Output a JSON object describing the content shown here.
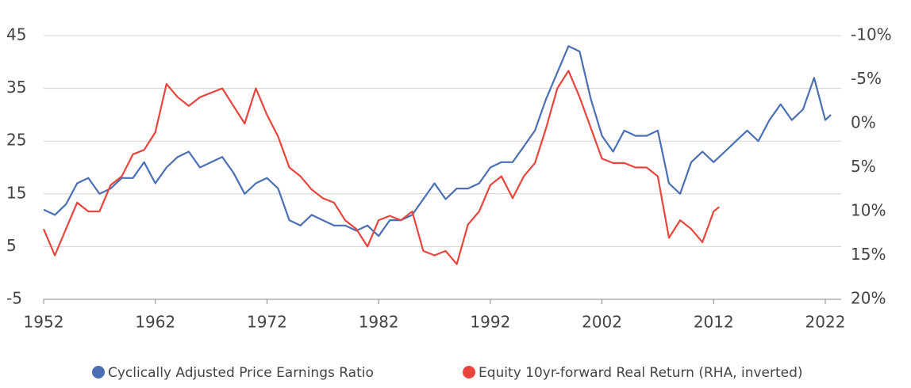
{
  "chart_data": {
    "type": "line",
    "xlim": [
      1952,
      2022
    ],
    "xticks": [
      1952,
      1962,
      1972,
      1982,
      1992,
      2002,
      2012,
      2022
    ],
    "ylim": [
      -5,
      45
    ],
    "yticks": [
      -5,
      5,
      15,
      25,
      35,
      45
    ],
    "y2lim": [
      20,
      -10
    ],
    "y2ticks": [
      {
        "value": 20,
        "label": "20%"
      },
      {
        "value": 15,
        "label": "15%"
      },
      {
        "value": 10,
        "label": "10%"
      },
      {
        "value": 5,
        "label": "5%"
      },
      {
        "value": 0,
        "label": "0%"
      },
      {
        "value": -5,
        "label": "-5%"
      },
      {
        "value": -10,
        "label": "-10%"
      }
    ],
    "grid": true,
    "legend": "bottom",
    "series": [
      {
        "name": "Cyclically Adjusted Price Earnings Ratio",
        "color": "#4a6fb5",
        "x": [
          1952,
          1953,
          1954,
          1955,
          1956,
          1957,
          1958,
          1959,
          1960,
          1961,
          1962,
          1963,
          1964,
          1965,
          1966,
          1967,
          1968,
          1969,
          1970,
          1971,
          1972,
          1973,
          1974,
          1975,
          1976,
          1977,
          1978,
          1979,
          1980,
          1981,
          1982,
          1983,
          1984,
          1985,
          1986,
          1987,
          1988,
          1989,
          1990,
          1991,
          1992,
          1993,
          1994,
          1995,
          1996,
          1997,
          1998,
          1999,
          2000,
          2001,
          2002,
          2003,
          2004,
          2005,
          2006,
          2007,
          2008,
          2009,
          2010,
          2011,
          2012,
          2013,
          2014,
          2015,
          2016,
          2017,
          2018,
          2019,
          2020,
          2021,
          2022,
          2022.5
        ],
        "values": [
          12,
          11,
          13,
          17,
          18,
          15,
          16,
          18,
          18,
          21,
          17,
          20,
          22,
          23,
          20,
          21,
          22,
          19,
          15,
          17,
          18,
          16,
          10,
          9,
          11,
          10,
          9,
          9,
          8,
          9,
          7,
          10,
          10,
          11,
          14,
          17,
          14,
          16,
          16,
          17,
          20,
          21,
          21,
          24,
          27,
          33,
          38,
          43,
          42,
          33,
          26,
          23,
          27,
          26,
          26,
          27,
          17,
          15,
          21,
          23,
          21,
          23,
          25,
          27,
          25,
          29,
          32,
          29,
          31,
          37,
          29,
          30
        ]
      },
      {
        "name": "Equity 10yr-forward Real Return (RHA, inverted)",
        "color": "#e8453c",
        "axis": "y2",
        "x": [
          1952,
          1953,
          1954,
          1955,
          1956,
          1957,
          1958,
          1959,
          1960,
          1961,
          1962,
          1963,
          1964,
          1965,
          1966,
          1967,
          1968,
          1969,
          1970,
          1971,
          1972,
          1973,
          1974,
          1975,
          1976,
          1977,
          1978,
          1979,
          1980,
          1981,
          1982,
          1983,
          1984,
          1985,
          1986,
          1987,
          1988,
          1989,
          1990,
          1991,
          1992,
          1993,
          1994,
          1995,
          1996,
          1997,
          1998,
          1999,
          2000,
          2001,
          2002,
          2003,
          2004,
          2005,
          2006,
          2007,
          2008,
          2009,
          2010,
          2011,
          2012,
          2012.5
        ],
        "values": [
          12,
          15,
          12,
          9,
          10,
          10,
          7,
          6,
          3.5,
          3,
          1,
          -4.5,
          -3,
          -2,
          -3,
          -3.5,
          -4,
          -2,
          0,
          -4,
          -1,
          1.5,
          5,
          6,
          7.5,
          8.5,
          9,
          11,
          12,
          14,
          11,
          10.5,
          11,
          10,
          14.5,
          15,
          14.5,
          16,
          11.5,
          10,
          7,
          6,
          8.5,
          6,
          4.5,
          0.5,
          -4,
          -6,
          -3,
          0.5,
          4,
          4.5,
          4.5,
          5,
          5,
          6,
          13,
          11,
          12,
          13.5,
          10,
          9.5
        ]
      }
    ]
  }
}
